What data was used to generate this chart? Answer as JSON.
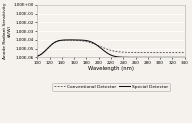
{
  "title": "",
  "xlabel": "Wavelength (nm)",
  "ylabel": "Anode Radiant Sensitivity\n(A/W)",
  "xlim": [
    100,
    340
  ],
  "ylim": [
    1e-06,
    1.0
  ],
  "xticks": [
    100,
    120,
    140,
    160,
    180,
    200,
    220,
    240,
    260,
    280,
    300,
    320,
    340
  ],
  "ytick_vals": [
    1e-06,
    1e-05,
    0.0001,
    0.001,
    0.01,
    0.1,
    1.0
  ],
  "ytick_labels": [
    "1.00E-06",
    "1.00E-05",
    "1.00E-04",
    "1.00E-03",
    "1.00E-02",
    "1.00E-01",
    "1.00E+00"
  ],
  "legend": [
    "Conventional Detector",
    "Special Detector"
  ],
  "bg_color": "#f5f2ee",
  "line_color_conventional": "#555555",
  "line_color_special": "#111111",
  "grid_color": "#ffffff"
}
